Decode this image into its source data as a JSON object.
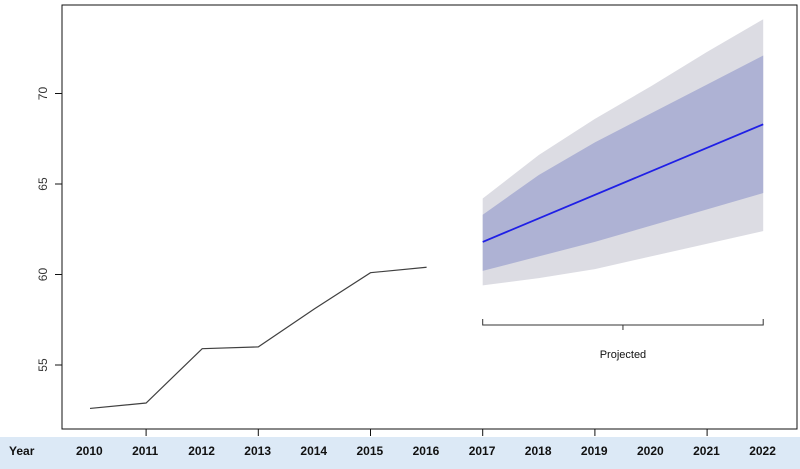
{
  "chart_data": {
    "type": "line",
    "x": [
      2010,
      2011,
      2012,
      2013,
      2014,
      2015,
      2016,
      2017,
      2018,
      2019,
      2020,
      2021,
      2022
    ],
    "ylim": [
      51.4,
      74.1
    ],
    "yticks": [
      55,
      60,
      65,
      70
    ],
    "grid": false,
    "series": [
      {
        "type": "line",
        "x": [
          2010,
          2011,
          2012,
          2013,
          2014,
          2015,
          2016
        ],
        "values": [
          52.6,
          52.9,
          55.9,
          56.0,
          58.1,
          60.1,
          60.4
        ],
        "color": "#404040"
      },
      {
        "type": "line",
        "x": [
          2017,
          2022
        ],
        "values": [
          61.8,
          68.3
        ],
        "color": "#1f1fe6"
      }
    ],
    "bands": [
      {
        "x": [
          2017,
          2018,
          2019,
          2020,
          2021,
          2022
        ],
        "lower": [
          59.4,
          59.8,
          60.3,
          61.0,
          61.7,
          62.4
        ],
        "upper": [
          64.2,
          66.6,
          68.6,
          70.4,
          72.3,
          74.1
        ],
        "color": "#dcdce3"
      },
      {
        "x": [
          2017,
          2018,
          2019,
          2020,
          2021,
          2022
        ],
        "lower": [
          60.2,
          61.0,
          61.8,
          62.7,
          63.6,
          64.5
        ],
        "upper": [
          63.3,
          65.5,
          67.3,
          68.9,
          70.5,
          72.1
        ],
        "color": "#aeb2d4"
      }
    ],
    "annotation": {
      "text": "Projected",
      "x_from": 2017,
      "x_to": 2022
    },
    "year_row": {
      "header": "Year",
      "years": [
        "2010",
        "2011",
        "2012",
        "2013",
        "2014",
        "2015",
        "2016",
        "2017",
        "2018",
        "2019",
        "2020",
        "2021",
        "2022"
      ],
      "background": "#dce9f6"
    }
  }
}
